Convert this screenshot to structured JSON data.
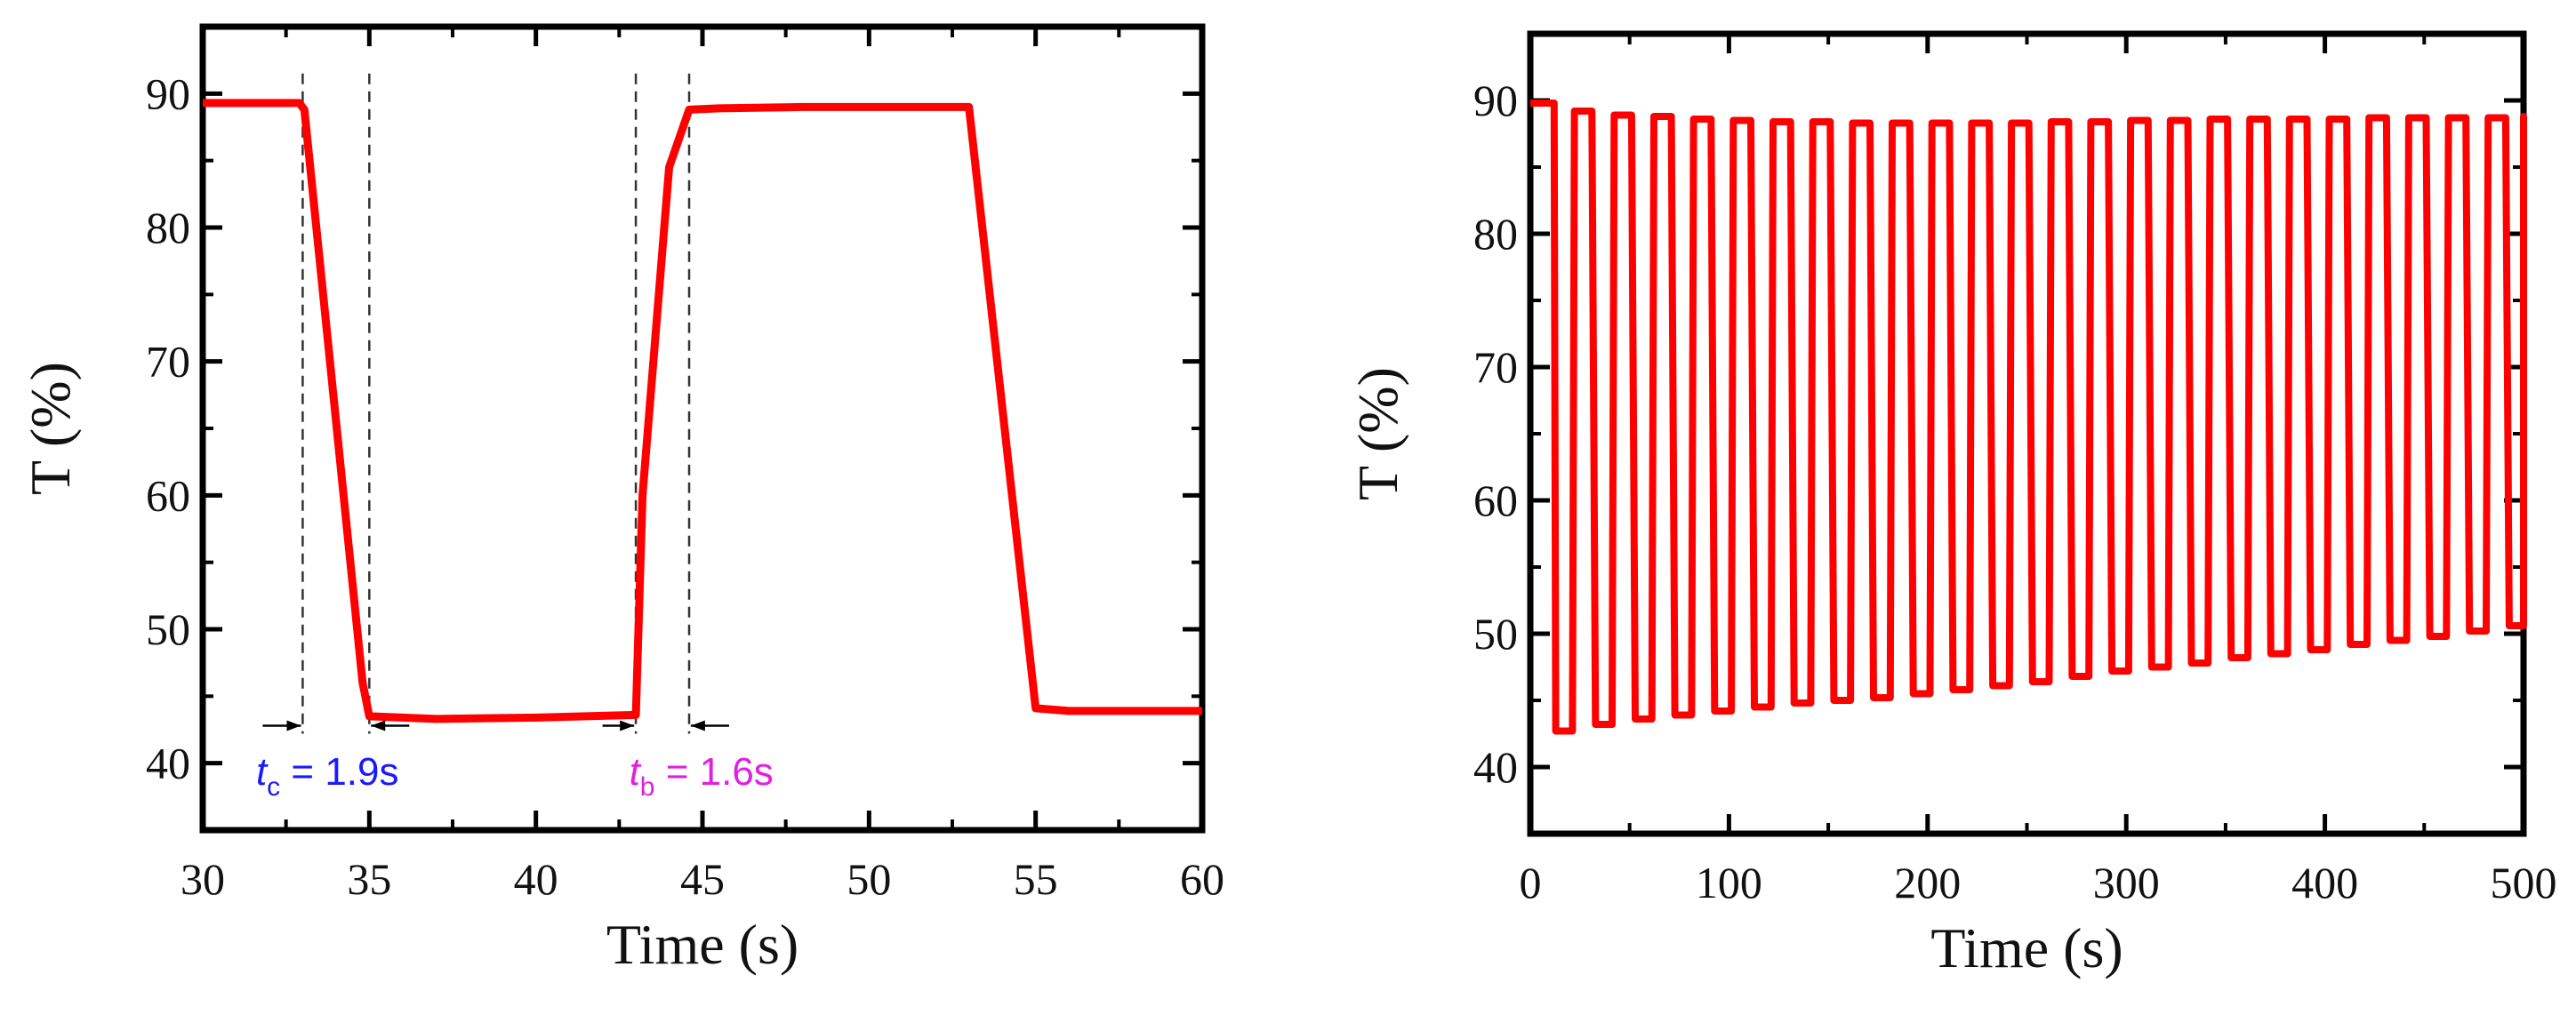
{
  "colors": {
    "series": "#ff0000",
    "axes": "#000000",
    "annot_tc": "#1a1aff",
    "annot_tb": "#e020e0",
    "guide": "#333333"
  },
  "chart_data": [
    {
      "type": "line",
      "xlabel": "Time (s)",
      "ylabel": "T (%)",
      "xlim": [
        30,
        60
      ],
      "ylim": [
        35,
        95
      ],
      "xticks": [
        30,
        35,
        40,
        45,
        50,
        55,
        60
      ],
      "xtick_labels": [
        "30",
        "35",
        "40",
        "45",
        "50",
        "55",
        "60"
      ],
      "yticks": [
        40,
        50,
        60,
        70,
        80,
        90
      ],
      "ytick_labels": [
        "40",
        "50",
        "60",
        "70",
        "80",
        "90"
      ],
      "grid": false,
      "series": [
        {
          "x": [
            30,
            32.9,
            33.05,
            34.8,
            35.0,
            37.0,
            40.0,
            43.0,
            43.2,
            44.0,
            44.6,
            45.5,
            48.0,
            53.0,
            55.0,
            56.0,
            60.0
          ],
          "y": [
            89.3,
            89.3,
            88.8,
            46.0,
            43.5,
            43.3,
            43.4,
            43.6,
            60.0,
            84.5,
            88.8,
            88.9,
            89.0,
            89.0,
            44.1,
            43.9,
            43.9
          ]
        }
      ],
      "guides": [
        {
          "x": 33.0,
          "y_top": 91.5
        },
        {
          "x": 35.0,
          "y_top": 91.5
        },
        {
          "x": 43.0,
          "y_top": 91.5
        },
        {
          "x": 44.6,
          "y_top": 91.5
        }
      ],
      "annotations": [
        {
          "italic": "t",
          "sub": "c",
          "text": " = 1.9s",
          "x": 31.6,
          "y": 38.4,
          "color": "#1a1aff"
        },
        {
          "italic": "t",
          "sub": "b",
          "text": " = 1.6s",
          "x": 42.8,
          "y": 38.4,
          "color": "#e020e0"
        }
      ],
      "arrows": [
        {
          "from": 31.8,
          "to": 32.95,
          "y": 42.8
        },
        {
          "from": 36.2,
          "to": 35.05,
          "y": 42.8
        },
        {
          "from": 42.0,
          "to": 42.95,
          "y": 42.8
        },
        {
          "from": 45.8,
          "to": 44.65,
          "y": 42.8
        }
      ]
    },
    {
      "type": "line",
      "xlabel": "Time (s)",
      "ylabel": "T (%)",
      "xlim": [
        0,
        500
      ],
      "ylim": [
        35,
        95
      ],
      "xticks": [
        0,
        100,
        200,
        300,
        400,
        500
      ],
      "xtick_labels": [
        "0",
        "100",
        "200",
        "300",
        "400",
        "500"
      ],
      "yticks": [
        40,
        50,
        60,
        70,
        80,
        90
      ],
      "ytick_labels": [
        "40",
        "50",
        "60",
        "70",
        "80",
        "90"
      ],
      "grid": false,
      "cycle": {
        "count": 25,
        "period": 20,
        "first_drop": 12,
        "top_start": 89.8,
        "top_values": [
          89.2,
          88.9,
          88.8,
          88.6,
          88.5,
          88.4,
          88.4,
          88.3,
          88.3,
          88.3,
          88.3,
          88.3,
          88.4,
          88.4,
          88.5,
          88.5,
          88.6,
          88.6,
          88.6,
          88.6,
          88.7,
          88.7,
          88.7,
          88.7,
          88.8
        ],
        "bottom_values": [
          42.7,
          43.2,
          43.6,
          43.9,
          44.2,
          44.5,
          44.8,
          45.0,
          45.2,
          45.5,
          45.8,
          46.1,
          46.4,
          46.8,
          47.2,
          47.5,
          47.8,
          48.2,
          48.5,
          48.8,
          49.2,
          49.5,
          49.8,
          50.2,
          50.6
        ],
        "end_value": 51.2
      }
    }
  ]
}
